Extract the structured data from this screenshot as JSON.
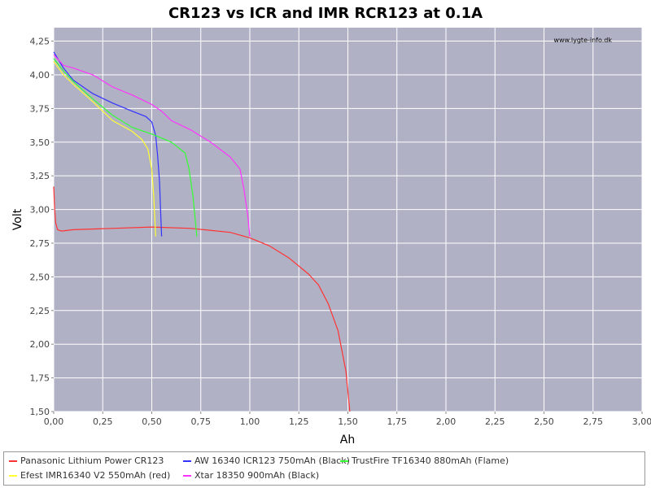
{
  "chart_data": {
    "type": "line",
    "title": "CR123 vs ICR and IMR RCR123 at 0.1A",
    "xlabel": "Ah",
    "ylabel": "Volt",
    "xlim": [
      0,
      3.0
    ],
    "ylim": [
      1.5,
      4.35
    ],
    "x_ticks": [
      "0,00",
      "0,25",
      "0,50",
      "0,75",
      "1,00",
      "1,25",
      "1,50",
      "1,75",
      "2,00",
      "2,25",
      "2,50",
      "2,75",
      "3,00"
    ],
    "y_ticks": [
      "1,50",
      "1,75",
      "2,00",
      "2,25",
      "2,50",
      "2,75",
      "3,00",
      "3,25",
      "3,50",
      "3,75",
      "4,00",
      "4,25"
    ],
    "grid": true,
    "background": "#b1b1c5",
    "grid_color": "#ffffff",
    "watermark": "www.lygte-info.dk",
    "legend_position": "bottom",
    "series": [
      {
        "name": "Panasonic Lithium Power CR123",
        "color": "#ff3333",
        "points": [
          [
            0.0,
            3.17
          ],
          [
            0.005,
            3.0
          ],
          [
            0.01,
            2.9
          ],
          [
            0.02,
            2.85
          ],
          [
            0.04,
            2.84
          ],
          [
            0.1,
            2.85
          ],
          [
            0.3,
            2.86
          ],
          [
            0.5,
            2.87
          ],
          [
            0.7,
            2.86
          ],
          [
            0.9,
            2.83
          ],
          [
            1.0,
            2.79
          ],
          [
            1.1,
            2.73
          ],
          [
            1.2,
            2.64
          ],
          [
            1.3,
            2.52
          ],
          [
            1.35,
            2.44
          ],
          [
            1.4,
            2.3
          ],
          [
            1.45,
            2.1
          ],
          [
            1.49,
            1.8
          ],
          [
            1.51,
            1.5
          ]
        ]
      },
      {
        "name": "AW 16340 ICR123 750mAh (Black)",
        "color": "#3333ff",
        "points": [
          [
            0.0,
            4.17
          ],
          [
            0.05,
            4.05
          ],
          [
            0.1,
            3.96
          ],
          [
            0.2,
            3.86
          ],
          [
            0.3,
            3.79
          ],
          [
            0.4,
            3.73
          ],
          [
            0.47,
            3.69
          ],
          [
            0.5,
            3.65
          ],
          [
            0.52,
            3.55
          ],
          [
            0.53,
            3.4
          ],
          [
            0.54,
            3.2
          ],
          [
            0.545,
            3.0
          ],
          [
            0.55,
            2.8
          ]
        ]
      },
      {
        "name": "TrustFire TF16340 880mAh (Flame)",
        "color": "#33ff33",
        "points": [
          [
            0.0,
            4.12
          ],
          [
            0.05,
            4.03
          ],
          [
            0.1,
            3.95
          ],
          [
            0.2,
            3.82
          ],
          [
            0.3,
            3.7
          ],
          [
            0.4,
            3.61
          ],
          [
            0.5,
            3.56
          ],
          [
            0.6,
            3.5
          ],
          [
            0.67,
            3.42
          ],
          [
            0.69,
            3.3
          ],
          [
            0.71,
            3.1
          ],
          [
            0.72,
            2.95
          ],
          [
            0.73,
            2.8
          ]
        ]
      },
      {
        "name": "Efest IMR16340 V2 550mAh (red)",
        "color": "#ffff33",
        "points": [
          [
            0.0,
            4.1
          ],
          [
            0.05,
            4.0
          ],
          [
            0.1,
            3.93
          ],
          [
            0.2,
            3.8
          ],
          [
            0.3,
            3.66
          ],
          [
            0.4,
            3.58
          ],
          [
            0.45,
            3.52
          ],
          [
            0.48,
            3.45
          ],
          [
            0.5,
            3.3
          ],
          [
            0.51,
            3.1
          ],
          [
            0.515,
            2.95
          ],
          [
            0.52,
            2.8
          ]
        ]
      },
      {
        "name": "Xtar 18350 900mAh (Black)",
        "color": "#ff33ff",
        "points": [
          [
            0.0,
            4.15
          ],
          [
            0.05,
            4.07
          ],
          [
            0.1,
            4.05
          ],
          [
            0.2,
            4.0
          ],
          [
            0.3,
            3.91
          ],
          [
            0.4,
            3.85
          ],
          [
            0.5,
            3.78
          ],
          [
            0.55,
            3.73
          ],
          [
            0.6,
            3.66
          ],
          [
            0.7,
            3.59
          ],
          [
            0.8,
            3.5
          ],
          [
            0.9,
            3.39
          ],
          [
            0.95,
            3.3
          ],
          [
            0.97,
            3.15
          ],
          [
            0.99,
            2.95
          ],
          [
            1.0,
            2.8
          ]
        ]
      }
    ]
  }
}
